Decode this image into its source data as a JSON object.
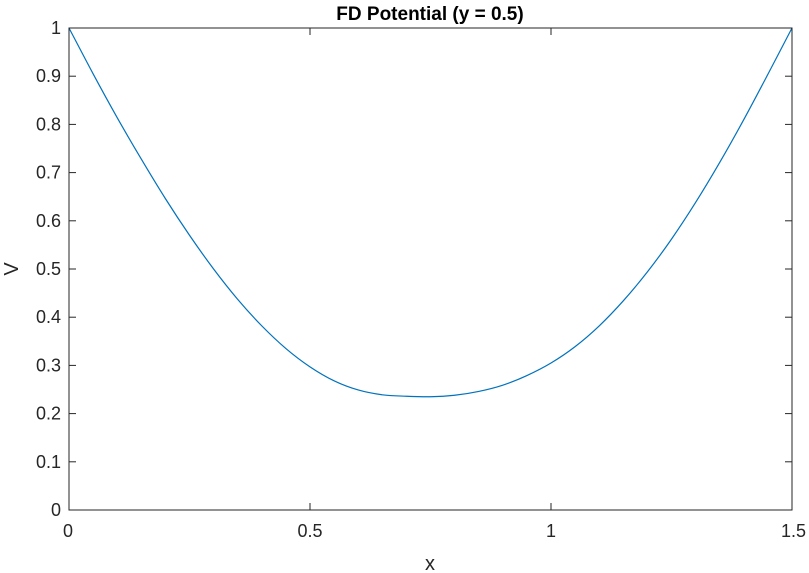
{
  "chart_data": {
    "type": "line",
    "title": "FD Potential (y = 0.5)",
    "xlabel": "x",
    "ylabel": "V",
    "xlim": [
      0,
      1.5
    ],
    "ylim": [
      0,
      1
    ],
    "xticks": [
      0,
      0.5,
      1,
      1.5
    ],
    "xtick_labels": [
      "0",
      "0.5",
      "1",
      "1.5"
    ],
    "yticks": [
      0,
      0.1,
      0.2,
      0.3,
      0.4,
      0.5,
      0.6,
      0.7,
      0.8,
      0.9,
      1
    ],
    "ytick_labels": [
      "0",
      "0.1",
      "0.2",
      "0.3",
      "0.4",
      "0.5",
      "0.6",
      "0.7",
      "0.8",
      "0.9",
      "1"
    ],
    "grid": false,
    "series": [
      {
        "color": "#0072BD",
        "x": [
          0,
          0.05,
          0.1,
          0.15,
          0.2,
          0.25,
          0.3,
          0.35,
          0.4,
          0.45,
          0.5,
          0.55,
          0.6,
          0.65,
          0.7,
          0.75,
          0.8,
          0.85,
          0.9,
          0.95,
          1.0,
          1.05,
          1.1,
          1.15,
          1.2,
          1.25,
          1.3,
          1.35,
          1.4,
          1.45,
          1.5
        ],
        "y": [
          1.0,
          0.905,
          0.814,
          0.728,
          0.646,
          0.57,
          0.5,
          0.437,
          0.382,
          0.335,
          0.297,
          0.268,
          0.249,
          0.239,
          0.236,
          0.235,
          0.238,
          0.246,
          0.259,
          0.279,
          0.305,
          0.339,
          0.382,
          0.434,
          0.494,
          0.562,
          0.638,
          0.721,
          0.81,
          0.904,
          1.0
        ]
      }
    ]
  },
  "style": {
    "line_color": "#0072BD",
    "axis_color": "#262626",
    "background": "#ffffff"
  }
}
